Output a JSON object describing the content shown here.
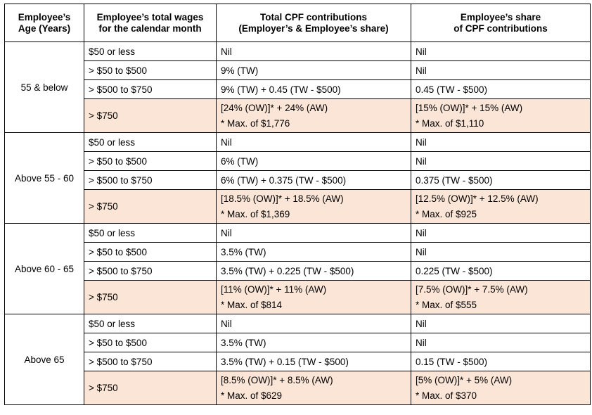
{
  "headers": {
    "age": [
      "Employee’s",
      "Age (Years)"
    ],
    "wages": [
      "Employee’s total wages",
      "for the calendar month"
    ],
    "total": [
      "Total CPF contributions",
      "(Employer’s & Employee’s share)"
    ],
    "share": [
      "Employee’s share",
      "of CPF contributions"
    ]
  },
  "groups": [
    {
      "age": "55 & below",
      "rows": [
        {
          "wage": "$50 or less",
          "total": "Nil",
          "share": "Nil"
        },
        {
          "wage": "> $50 to $500",
          "total": "9% (TW)",
          "share": "Nil"
        },
        {
          "wage": "> $500 to $750",
          "total": "9% (TW) + 0.45 (TW - $500)",
          "share": "0.45 (TW - $500)"
        }
      ],
      "high": {
        "wage": "> $750",
        "total": [
          "[24% (OW)]* + 24% (AW)",
          "* Max. of $1,776"
        ],
        "share": [
          "[15% (OW)]* + 15% (AW)",
          "* Max. of $1,110"
        ]
      }
    },
    {
      "age": "Above 55 - 60",
      "rows": [
        {
          "wage": "$50 or less",
          "total": "Nil",
          "share": "Nil"
        },
        {
          "wage": "> $50 to $500",
          "total": "6% (TW)",
          "share": "Nil"
        },
        {
          "wage": "> $500 to $750",
          "total": "6% (TW) + 0.375 (TW - $500)",
          "share": "0.375 (TW - $500)"
        }
      ],
      "high": {
        "wage": "> $750",
        "total": [
          "[18.5% (OW)]* + 18.5% (AW)",
          "* Max. of $1,369"
        ],
        "share": [
          "[12.5% (OW)]* + 12.5% (AW)",
          "* Max. of $925"
        ]
      }
    },
    {
      "age": "Above 60 - 65",
      "rows": [
        {
          "wage": "$50 or less",
          "total": "Nil",
          "share": "Nil"
        },
        {
          "wage": "> $50 to $500",
          "total": "3.5% (TW)",
          "share": "Nil"
        },
        {
          "wage": "> $500 to $750",
          "total": "3.5% (TW) + 0.225 (TW - $500)",
          "share": "0.225 (TW - $500)"
        }
      ],
      "high": {
        "wage": "> $750",
        "total": [
          "[11% (OW)]* + 11% (AW)",
          "* Max. of $814"
        ],
        "share": [
          "[7.5% (OW)]* + 7.5% (AW)",
          "* Max. of $555"
        ]
      }
    },
    {
      "age": "Above 65",
      "rows": [
        {
          "wage": "$50 or less",
          "total": "Nil",
          "share": "Nil"
        },
        {
          "wage": "> $50 to $500",
          "total": "3.5% (TW)",
          "share": "Nil"
        },
        {
          "wage": "> $500 to $750",
          "total": "3.5% (TW) + 0.15 (TW - $500)",
          "share": "0.15 (TW - $500)"
        }
      ],
      "high": {
        "wage": "> $750",
        "total": [
          "[8.5% (OW)]* + 8.5% (AW)",
          "* Max. of $629"
        ],
        "share": [
          "[5% (OW)]* + 5% (AW)",
          "* Max. of $370"
        ]
      }
    }
  ],
  "colors": {
    "highlight": "#fbe5d6",
    "border": "#000000"
  }
}
